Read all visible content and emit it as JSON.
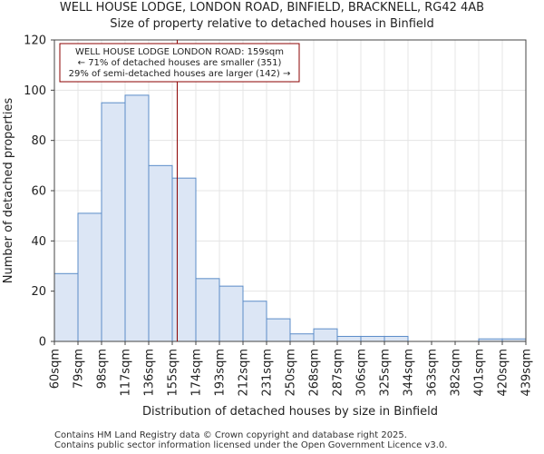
{
  "header": {
    "title_line1": "WELL HOUSE LODGE, LONDON ROAD, BINFIELD, BRACKNELL, RG42 4AB",
    "title_line2": "Size of property relative to detached houses in Binfield"
  },
  "footer": {
    "line1": "Contains HM Land Registry data © Crown copyright and database right 2025.",
    "line2": "Contains public sector information licensed under the Open Government Licence v3.0."
  },
  "chart_data": {
    "type": "bar",
    "title": "Size of property relative to detached houses in Binfield",
    "xlabel": "Distribution of detached houses by size in Binfield",
    "ylabel": "Number of detached properties",
    "bin_edges": [
      "60sqm",
      "79sqm",
      "98sqm",
      "117sqm",
      "136sqm",
      "155sqm",
      "174sqm",
      "193sqm",
      "212sqm",
      "231sqm",
      "250sqm",
      "268sqm",
      "287sqm",
      "306sqm",
      "325sqm",
      "344sqm",
      "363sqm",
      "382sqm",
      "401sqm",
      "420sqm",
      "439sqm"
    ],
    "values": [
      27,
      51,
      95,
      98,
      70,
      65,
      25,
      22,
      16,
      9,
      3,
      5,
      2,
      2,
      2,
      0,
      0,
      0,
      1,
      1
    ],
    "ylim": [
      0,
      120
    ],
    "yticks": [
      0,
      20,
      40,
      60,
      80,
      100,
      120
    ],
    "property_marker": {
      "value_sqm": 159,
      "bin_index": 5,
      "fraction_in_bin": 0.21,
      "color": "#8b0000"
    },
    "annotation": {
      "line1": "WELL HOUSE LODGE LONDON ROAD: 159sqm",
      "line2": "← 71% of detached houses are smaller (351)",
      "line3": "29% of semi-detached houses are larger (142) →"
    },
    "bar_fill": "#dce6f5",
    "bar_edge": "#5b8cc8",
    "grid": true
  }
}
